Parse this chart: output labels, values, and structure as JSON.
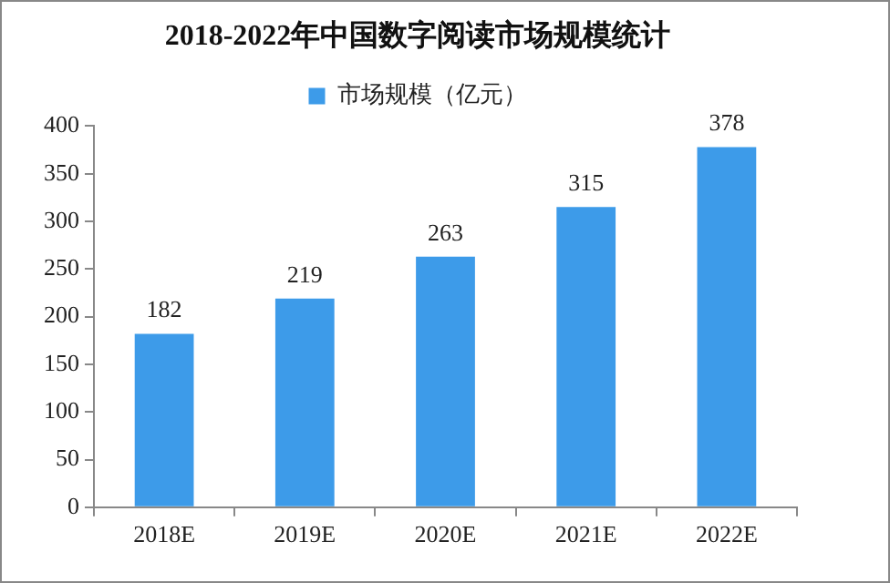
{
  "chart_data": {
    "type": "bar",
    "title": "2018-2022年中国数字阅读市场规模统计",
    "categories": [
      "2018E",
      "2019E",
      "2020E",
      "2021E",
      "2022E"
    ],
    "series": [
      {
        "name": "市场规模（亿元）",
        "color": "#3d9be9",
        "values": [
          182,
          219,
          263,
          315,
          378
        ]
      }
    ],
    "ylim": [
      0,
      400
    ],
    "yticks": [
      0,
      50,
      100,
      150,
      200,
      250,
      300,
      350,
      400
    ],
    "grid": false,
    "legend": "top",
    "data_labels": true
  }
}
